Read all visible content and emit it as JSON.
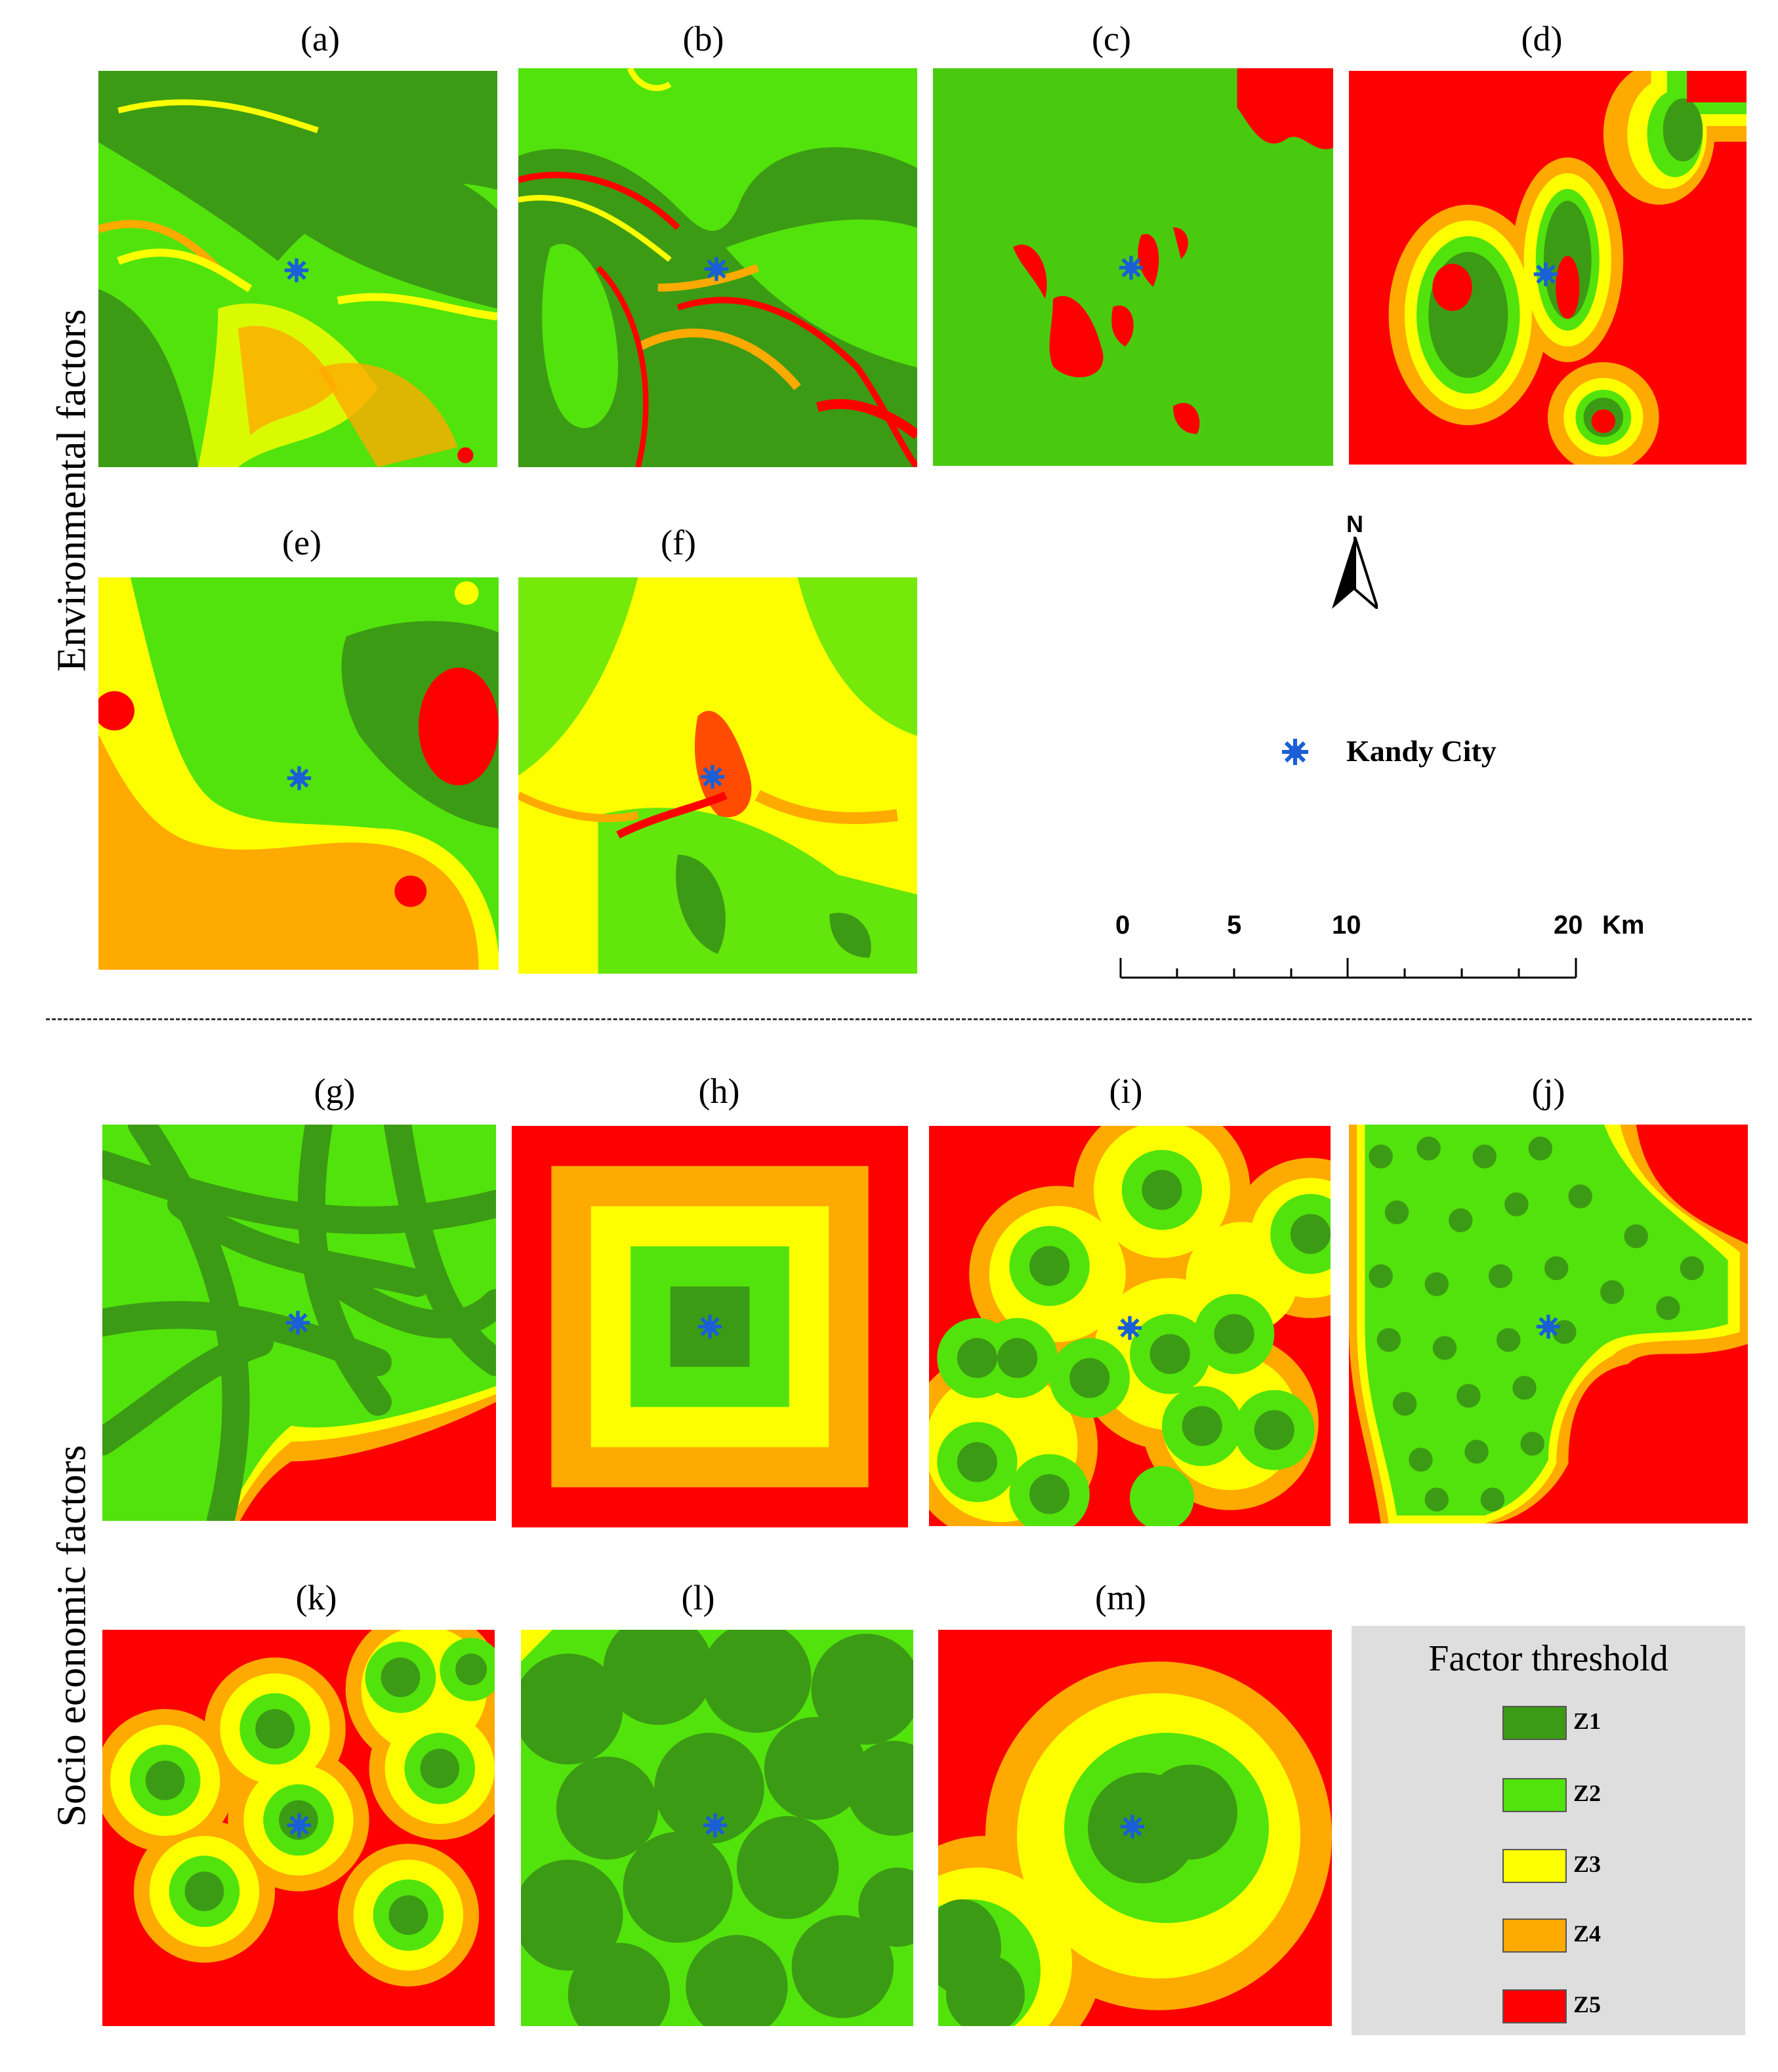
{
  "rows": {
    "environmental": "Environmental factors",
    "socio": "Socio economic factors"
  },
  "panel_labels": {
    "a": "(a)",
    "b": "(b)",
    "c": "(c)",
    "d": "(d)",
    "e": "(e)",
    "f": "(f)",
    "g": "(g)",
    "h": "(h)",
    "i": "(i)",
    "j": "(j)",
    "k": "(k)",
    "l": "(l)",
    "m": "(m)"
  },
  "north": "N",
  "city_label": "Kandy City",
  "scale_bar": {
    "ticks": [
      "0",
      "5",
      "10",
      "20"
    ],
    "unit": "Km"
  },
  "legend": {
    "title": "Factor threshold",
    "zones": [
      {
        "label": "Z1",
        "color": "#3c9b14"
      },
      {
        "label": "Z2",
        "color": "#52e30c"
      },
      {
        "label": "Z3",
        "color": "#fdff00"
      },
      {
        "label": "Z4",
        "color": "#ffaa00"
      },
      {
        "label": "Z5",
        "color": "#ff0000"
      }
    ]
  }
}
